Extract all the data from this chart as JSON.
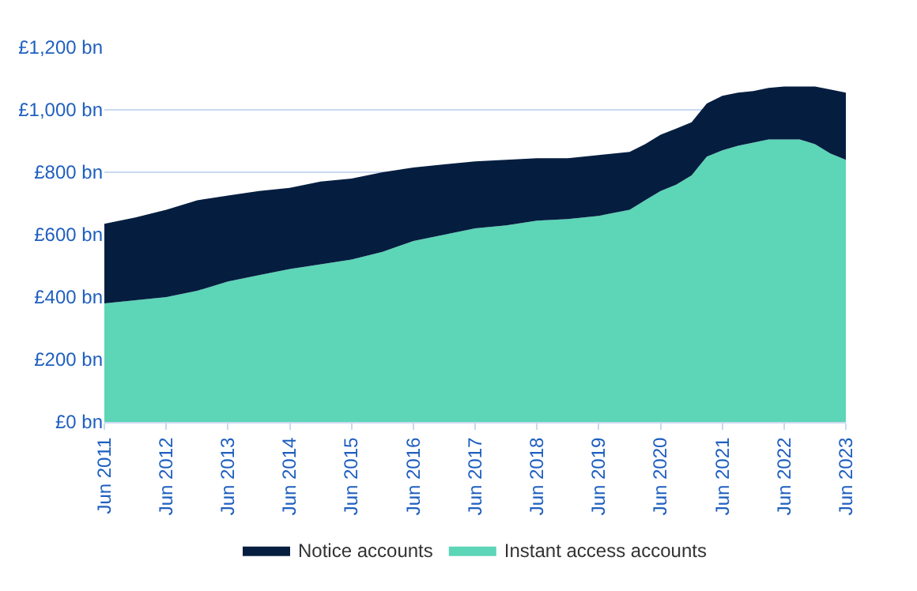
{
  "chart_data": {
    "type": "area",
    "stacked": true,
    "x": [
      "2011-06",
      "2011-12",
      "2012-06",
      "2012-12",
      "2013-06",
      "2013-12",
      "2014-06",
      "2014-12",
      "2015-06",
      "2015-12",
      "2016-06",
      "2016-12",
      "2017-06",
      "2017-12",
      "2018-06",
      "2018-12",
      "2019-06",
      "2019-12",
      "2020-03",
      "2020-06",
      "2020-09",
      "2020-12",
      "2021-03",
      "2021-06",
      "2021-09",
      "2021-12",
      "2022-03",
      "2022-06",
      "2022-09",
      "2022-12",
      "2023-03",
      "2023-06"
    ],
    "series": [
      {
        "name": "Instant access accounts",
        "color": "#5dd5b7",
        "values": [
          380,
          390,
          400,
          420,
          450,
          470,
          490,
          505,
          520,
          545,
          580,
          600,
          620,
          630,
          645,
          650,
          660,
          680,
          710,
          740,
          760,
          790,
          850,
          870,
          885,
          895,
          905,
          905,
          905,
          890,
          860,
          840
        ]
      },
      {
        "name": "Notice accounts",
        "color": "#051e40",
        "values": [
          255,
          265,
          280,
          290,
          275,
          270,
          260,
          265,
          260,
          255,
          235,
          225,
          215,
          210,
          200,
          195,
          195,
          185,
          180,
          180,
          180,
          170,
          170,
          175,
          170,
          165,
          165,
          170,
          170,
          185,
          205,
          215
        ]
      }
    ],
    "ylim": [
      0,
      1200
    ],
    "yticks": [
      {
        "value": 0,
        "label": "£0 bn"
      },
      {
        "value": 200,
        "label": "£200 bn"
      },
      {
        "value": 400,
        "label": "£400 bn"
      },
      {
        "value": 600,
        "label": "£600 bn"
      },
      {
        "value": 800,
        "label": "£800 bn"
      },
      {
        "value": 1000,
        "label": "£1,000 bn"
      },
      {
        "value": 1200,
        "label": "£1,200 bn"
      }
    ],
    "xlim": [
      "2011-06",
      "2023-06"
    ],
    "xticks": [
      {
        "value": "2011-06",
        "label": "Jun 2011"
      },
      {
        "value": "2012-06",
        "label": "Jun 2012"
      },
      {
        "value": "2013-06",
        "label": "Jun 2013"
      },
      {
        "value": "2014-06",
        "label": "Jun 2014"
      },
      {
        "value": "2015-06",
        "label": "Jun 2015"
      },
      {
        "value": "2016-06",
        "label": "Jun 2016"
      },
      {
        "value": "2017-06",
        "label": "Jun 2017"
      },
      {
        "value": "2018-06",
        "label": "Jun 2018"
      },
      {
        "value": "2019-06",
        "label": "Jun 2019"
      },
      {
        "value": "2020-06",
        "label": "Jun 2020"
      },
      {
        "value": "2021-06",
        "label": "Jun 2021"
      },
      {
        "value": "2022-06",
        "label": "Jun 2022"
      },
      {
        "value": "2023-06",
        "label": "Jun 2023"
      }
    ],
    "grid": "y",
    "legend": "bottom"
  }
}
